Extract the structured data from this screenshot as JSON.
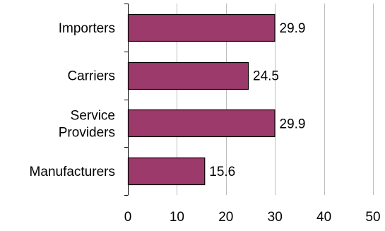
{
  "colors": {
    "bar_fill": "#9c3a6b",
    "bar_stroke": "#000000",
    "grid": "#bdbdbd",
    "axis": "#000000",
    "text": "#000000"
  },
  "chart_data": {
    "type": "bar",
    "orientation": "horizontal",
    "title": "",
    "xlabel": "",
    "ylabel": "",
    "categories": [
      [
        "Importers"
      ],
      [
        "Carriers"
      ],
      [
        "Service",
        "Providers"
      ],
      [
        "Manufacturers"
      ]
    ],
    "values": [
      29.9,
      24.5,
      29.9,
      15.6
    ],
    "data_labels": [
      "29.9",
      "24.5",
      "29.9",
      "15.6"
    ],
    "xlim": [
      0,
      50
    ],
    "xticks": [
      0,
      10,
      20,
      30,
      40,
      50
    ],
    "xtick_labels": [
      "0",
      "10",
      "20",
      "30",
      "40",
      "50"
    ],
    "grid": "vertical",
    "legend": "none"
  }
}
